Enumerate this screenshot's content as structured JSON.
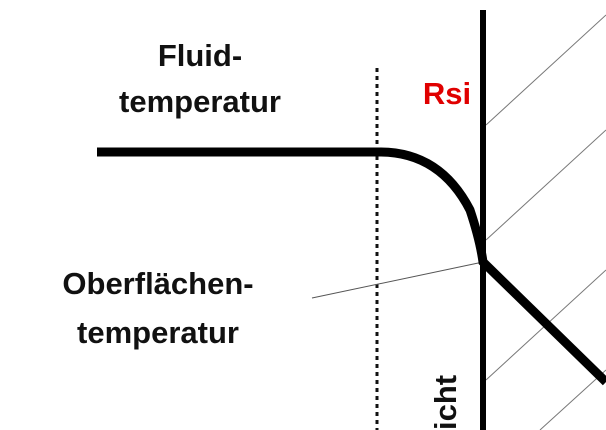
{
  "fluid_label": [
    "Fluid-",
    "temperatur"
  ],
  "resistance_label": "Rsi",
  "surface_label": [
    "Oberflächen-",
    "temperatur"
  ],
  "layer_label": "icht"
}
